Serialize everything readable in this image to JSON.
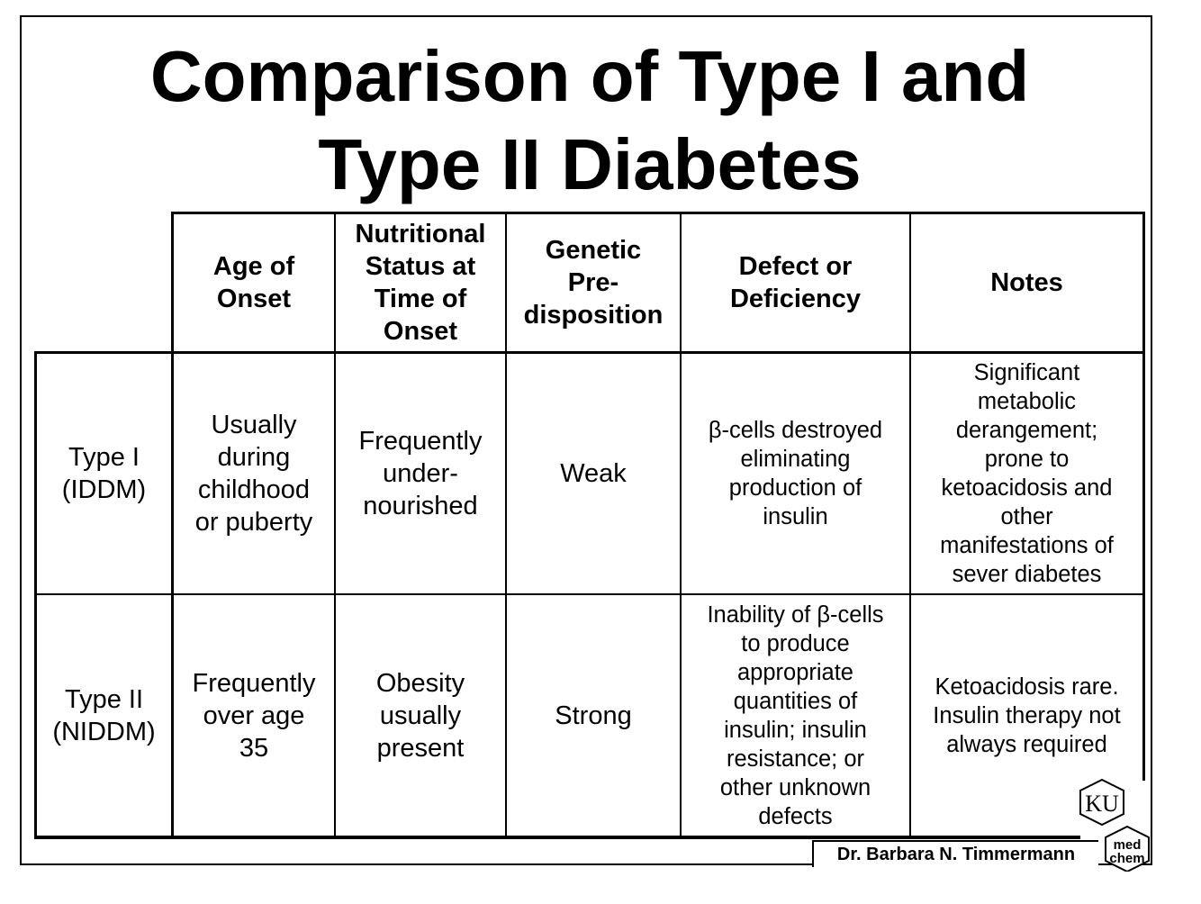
{
  "title": {
    "line1": "Comparison of Type I and",
    "line2": "Type II Diabetes"
  },
  "table": {
    "headers": [
      "Age of\nOnset",
      "Nutritional\nStatus at\nTime of\nOnset",
      "Genetic\nPre-\ndisposition",
      "Defect or\nDeficiency",
      "Notes"
    ],
    "rows": [
      {
        "label": "Type I\n(IDDM)",
        "age_of_onset": "Usually\nduring\nchildhood\nor puberty",
        "nutritional_status": "Frequently\nunder-\nnourished",
        "genetic_predisposition": "Weak",
        "defect": "β-cells destroyed\neliminating\nproduction of\ninsulin",
        "notes": "Significant\nmetabolic\nderangement;\nprone to\nketoacidosis and\nother\nmanifestations of\nsever diabetes"
      },
      {
        "label": "Type II\n(NIDDM)",
        "age_of_onset": "Frequently\nover age\n35",
        "nutritional_status": "Obesity\nusually\npresent",
        "genetic_predisposition": "Strong",
        "defect": "Inability of β-cells\nto produce\nappropriate\nquantities of\ninsulin; insulin\nresistance; or\nother unknown\ndefects",
        "notes": "Ketoacidosis rare.\nInsulin therapy not\nalways required"
      }
    ]
  },
  "footer": {
    "credit": "Dr. Barbara N. Timmermann",
    "logo_text_top": "KU",
    "logo_text_bottom_1": "med",
    "logo_text_bottom_2": "chem"
  }
}
